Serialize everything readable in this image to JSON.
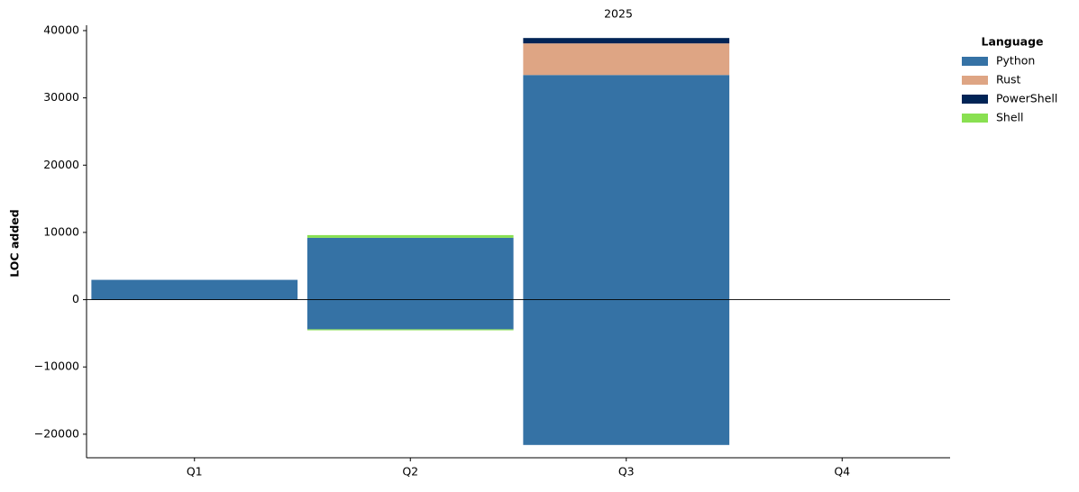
{
  "chart_data": {
    "type": "diverging_stacked_bar",
    "title": "2025",
    "y_label": "LOC added",
    "categories": [
      "Q1",
      "Q2",
      "Q3",
      "Q4"
    ],
    "legend_title": "Language",
    "legend_position": "outside right",
    "series": [
      {
        "name": "Python",
        "color": "#3572a5",
        "values": [
          2950,
          9200,
          33400,
          null
        ],
        "negative_values": [
          null,
          -4400,
          -21600,
          null
        ]
      },
      {
        "name": "Rust",
        "color": "#dea584",
        "values": [
          null,
          null,
          4700,
          null
        ],
        "negative_values": [
          null,
          null,
          null,
          null
        ]
      },
      {
        "name": "PowerShell",
        "color": "#012456",
        "values": [
          null,
          null,
          800,
          null
        ],
        "negative_values": [
          null,
          null,
          null,
          null
        ]
      },
      {
        "name": "Shell",
        "color": "#89e051",
        "values": [
          null,
          400,
          null,
          null
        ],
        "negative_values": [
          null,
          -150,
          null,
          null
        ]
      }
    ],
    "ylim": [
      -23500,
      40800
    ],
    "yticks": [
      {
        "value": -20000,
        "label": "−20000"
      },
      {
        "value": -10000,
        "label": "−10000"
      },
      0,
      10000,
      20000,
      30000,
      40000
    ],
    "zero_line": true
  }
}
